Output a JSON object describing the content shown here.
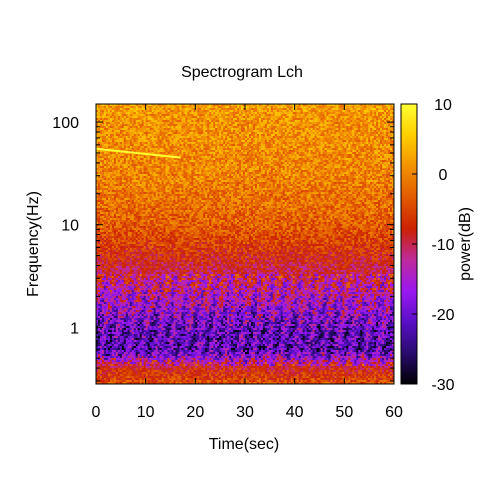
{
  "chart_data": {
    "type": "heatmap",
    "title": "Spectrogram Lch",
    "xlabel": "Time(sec)",
    "ylabel": "Frequency(Hz)",
    "xlim": [
      0,
      60
    ],
    "ylim": [
      0.28,
      150
    ],
    "y_scale": "log",
    "x_ticks": [
      0,
      10,
      20,
      30,
      40,
      50,
      60
    ],
    "y_ticks": [
      1,
      10,
      100
    ],
    "colorbar": {
      "label": "power(dB)",
      "range": [
        -30,
        10
      ],
      "ticks": [
        10,
        0,
        -10,
        -20,
        -30
      ],
      "colormap": [
        "#000004",
        "#2a0b6e",
        "#5a0fc8",
        "#9b19f0",
        "#c02a9a",
        "#cc2200",
        "#e25a00",
        "#f39200",
        "#ffcf00",
        "#ffff33"
      ]
    },
    "spectral_line": {
      "description_points": [
        {
          "t": 0,
          "f": 55
        },
        {
          "t": 17,
          "f": 45
        }
      ],
      "power_db": 10
    },
    "power_profile_by_frequency": [
      {
        "f": 150,
        "power_db": 2
      },
      {
        "f": 100,
        "power_db": 1
      },
      {
        "f": 30,
        "power_db": 0
      },
      {
        "f": 10,
        "power_db": -3
      },
      {
        "f": 5,
        "power_db": -7
      },
      {
        "f": 2,
        "power_db": -14
      },
      {
        "f": 1,
        "power_db": -20
      },
      {
        "f": 0.6,
        "power_db": -22
      },
      {
        "f": 0.4,
        "power_db": -8
      },
      {
        "f": 0.28,
        "power_db": -4
      }
    ]
  }
}
